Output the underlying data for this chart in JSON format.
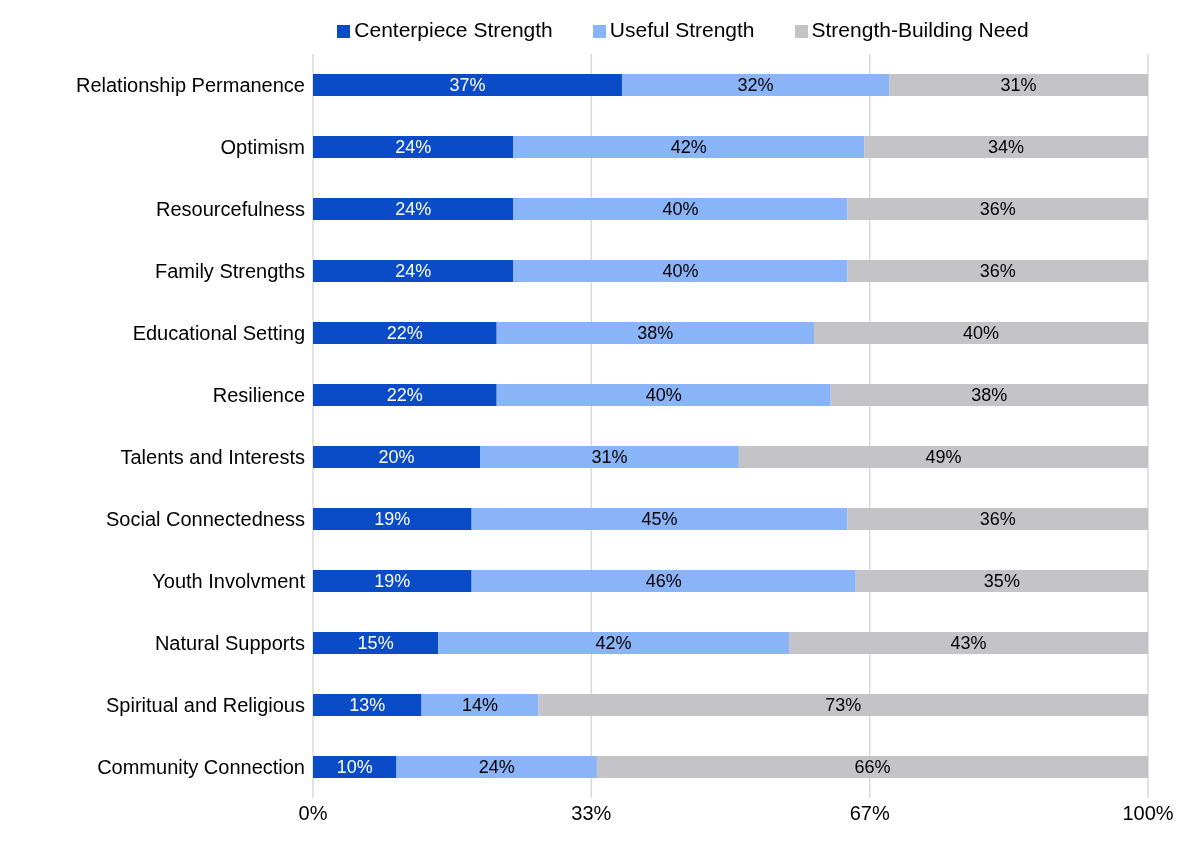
{
  "chart_data": {
    "type": "bar",
    "orientation": "horizontal",
    "stacked": true,
    "grid": "x",
    "legend": "top",
    "categories": [
      "Relationship Permanence",
      "Optimism",
      "Resourcefulness",
      "Family Strengths",
      "Educational Setting",
      "Resilience",
      "Talents and Interests",
      "Social Connectedness",
      "Youth Involvment",
      "Natural Supports",
      "Spiritual and Religious",
      "Community Connection"
    ],
    "series": [
      {
        "name": "Centerpiece Strength",
        "color": "#0a4bc8",
        "values": [
          37,
          24,
          24,
          24,
          22,
          22,
          20,
          19,
          19,
          15,
          13,
          10
        ],
        "value_labels": [
          "37%",
          "24%",
          "24%",
          "24%",
          "22%",
          "22%",
          "20%",
          "19%",
          "19%",
          "15%",
          "13%",
          "10%"
        ]
      },
      {
        "name": "Useful Strength",
        "color": "#8ab4f8",
        "values": [
          32,
          42,
          40,
          40,
          38,
          40,
          31,
          45,
          46,
          42,
          14,
          24
        ],
        "value_labels": [
          "32%",
          "42%",
          "40%",
          "40%",
          "38%",
          "40%",
          "31%",
          "45%",
          "46%",
          "42%",
          "14%",
          "24%"
        ]
      },
      {
        "name": "Strength-Building Need",
        "color": "#c4c4c8",
        "values": [
          31,
          34,
          36,
          36,
          40,
          38,
          49,
          36,
          35,
          43,
          73,
          66
        ],
        "value_labels": [
          "31%",
          "34%",
          "36%",
          "36%",
          "40%",
          "38%",
          "49%",
          "36%",
          "35%",
          "43%",
          "73%",
          "66%"
        ]
      }
    ],
    "xlim": [
      0,
      100
    ],
    "xticks": [
      {
        "value": 0,
        "label": "0%"
      },
      {
        "value": 33.33,
        "label": "33%"
      },
      {
        "value": 66.67,
        "label": "67%"
      },
      {
        "value": 100,
        "label": "100%"
      }
    ]
  }
}
